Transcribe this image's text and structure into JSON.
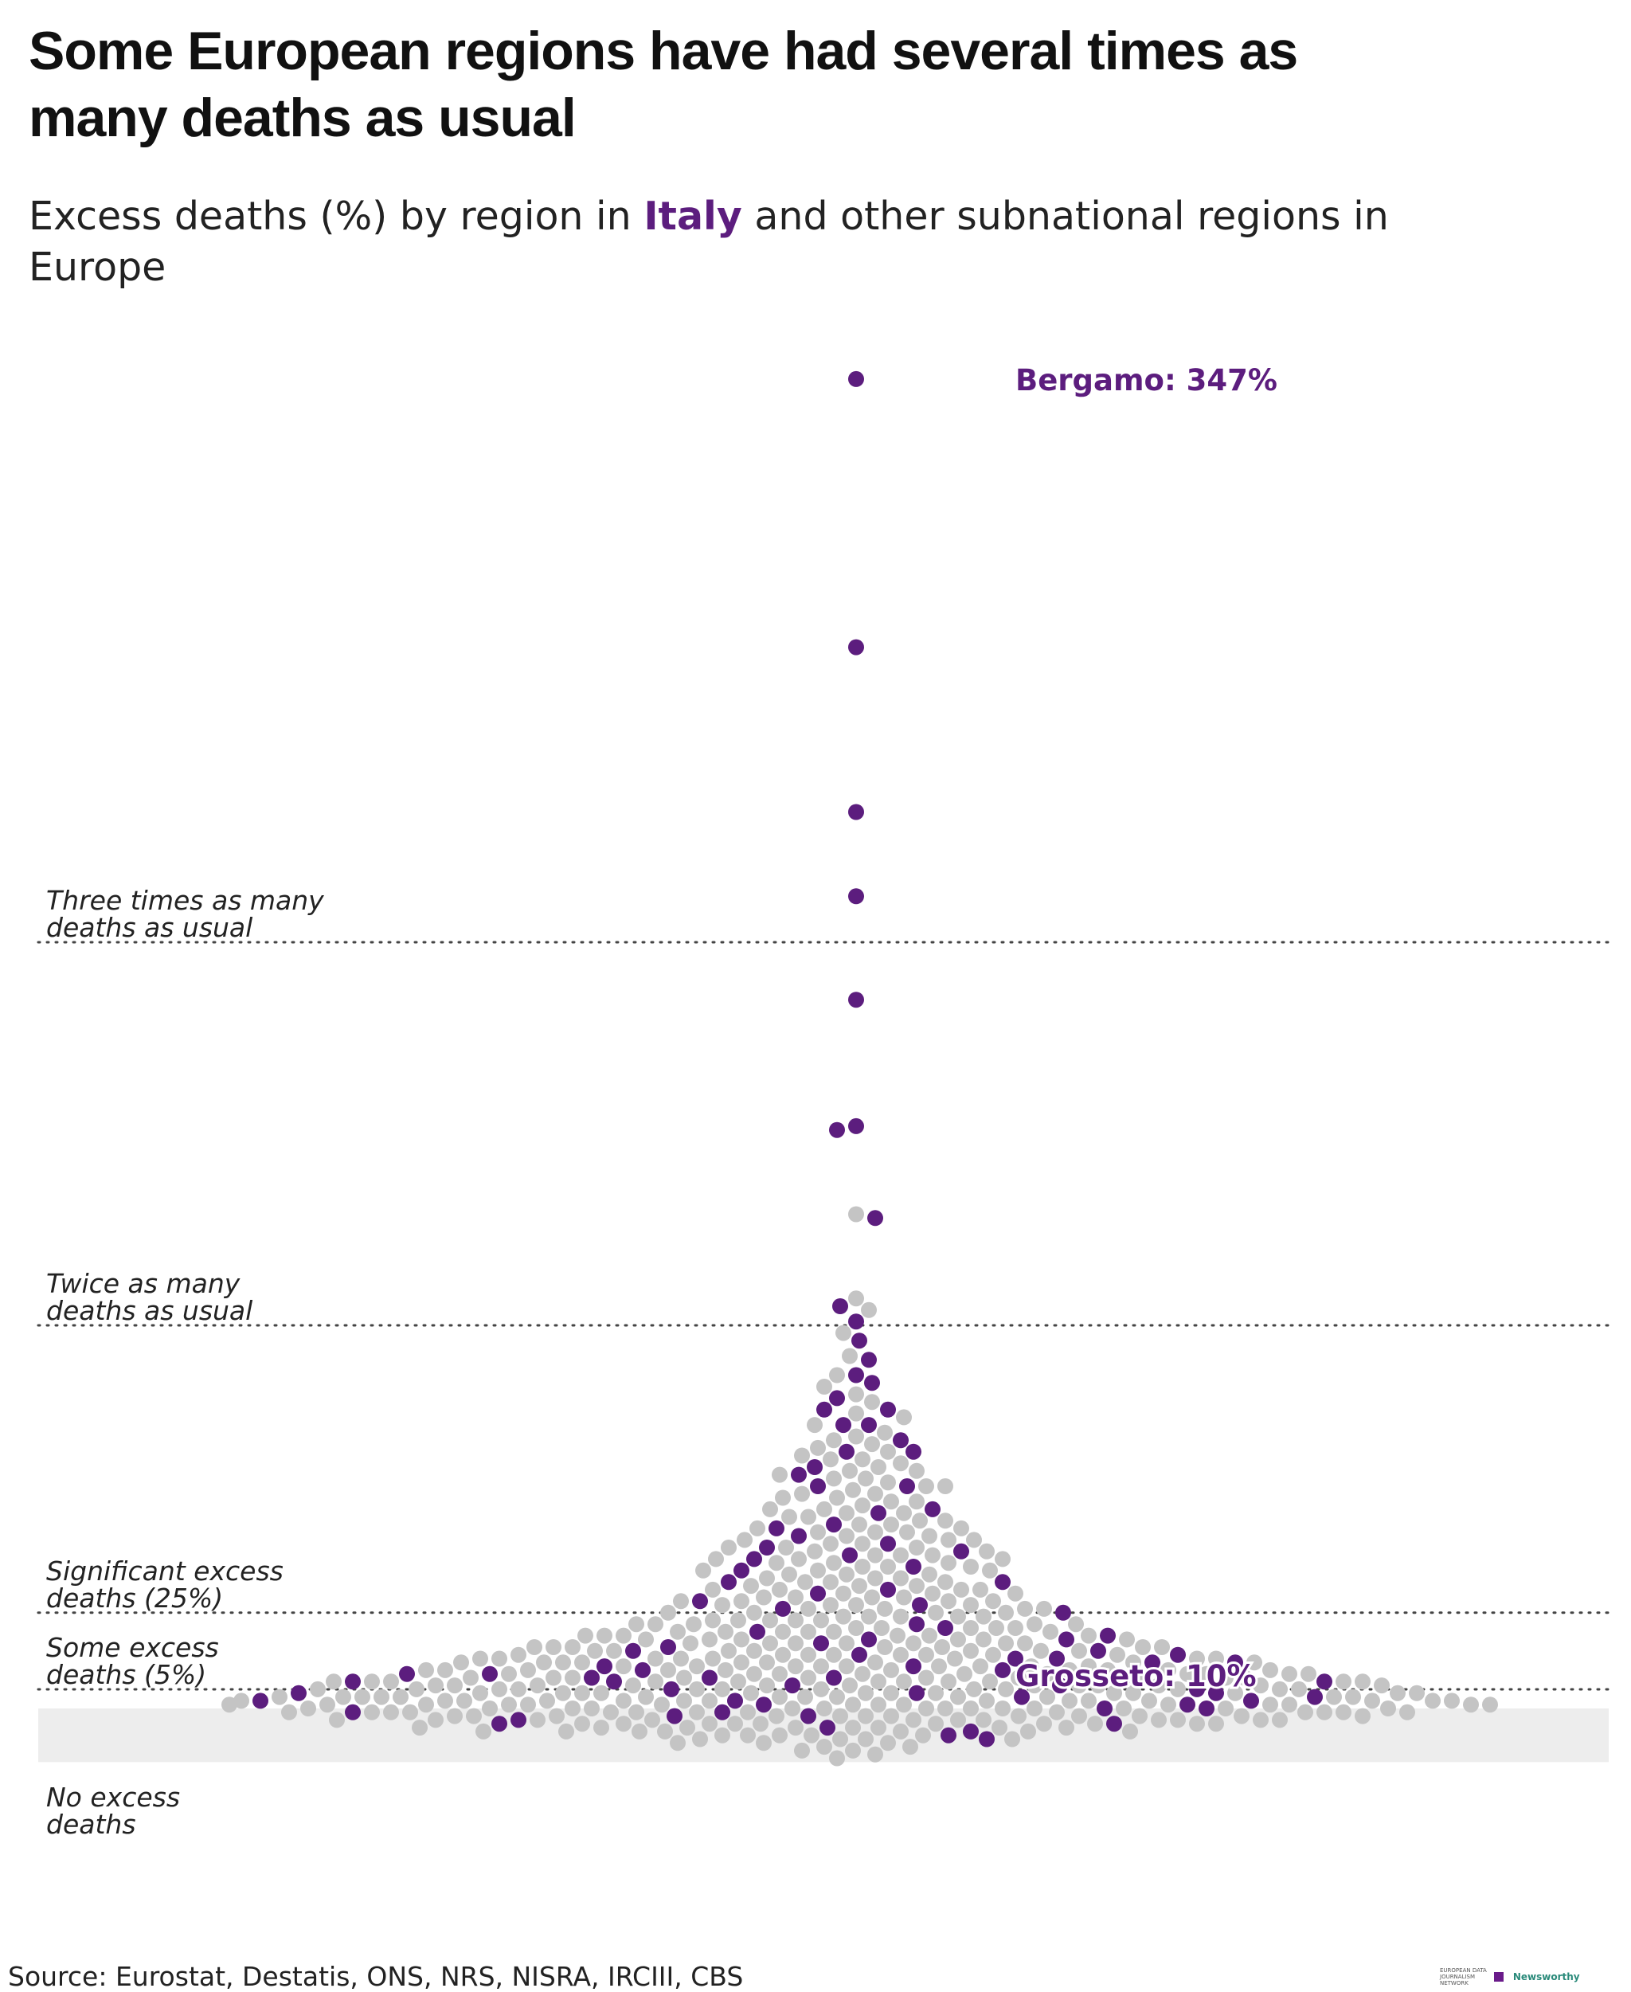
{
  "header": {
    "title": "Some European regions have had several times as many deaths as usual",
    "subtitle_pre": "Excess deaths (%) by region in ",
    "subtitle_highlight": "Italy",
    "subtitle_post": " and other subnational regions in Europe"
  },
  "footer": {
    "source": "Source: Eurostat, Destatis, ONS, NRS, NISRA, IRCIII, CBS",
    "logo_edjnet": "EUROPEAN DATA JOURNALISM NETWORK",
    "logo_newsworthy": "Newsworthy"
  },
  "colors": {
    "highlight": "#5c1d7e",
    "other": "#c4c4c4",
    "no_excess_band": "#ededed",
    "reference_line": "#444444"
  },
  "chart_data": {
    "type": "scatter",
    "subtype": "beeswarm",
    "title": "Some European regions have had several times as many deaths as usual",
    "ylabel": "",
    "xlabel": "",
    "ylim": [
      -14,
      350
    ],
    "grid": false,
    "legend": "none",
    "reference_lines": [
      {
        "value": 200,
        "label_line1": "Three times as many",
        "label_line2": "deaths as usual"
      },
      {
        "value": 100,
        "label_line1": "Twice as many",
        "label_line2": "deaths as usual"
      },
      {
        "value": 25,
        "label_line1": "Significant excess",
        "label_line2": "deaths (25%)"
      },
      {
        "value": 5,
        "label_line1": "Some excess",
        "label_line2": "deaths (5%)"
      }
    ],
    "no_excess_band": {
      "from": -14,
      "to": 0,
      "label_line1": "No excess",
      "label_line2": "deaths"
    },
    "annotations": [
      {
        "text": "Bergamo: 347%",
        "value": 347
      },
      {
        "text": "Grosseto: 10%",
        "value": 10
      }
    ],
    "series": [
      {
        "name": "Italy",
        "color": "#5c1d7e",
        "values": [
          347,
          277,
          234,
          212,
          185,
          152,
          151,
          128,
          105,
          101,
          96,
          91,
          87,
          85,
          81,
          78,
          78,
          74,
          74,
          70,
          67,
          67,
          63,
          61,
          58,
          58,
          52,
          51,
          48,
          47,
          45,
          43,
          42,
          41,
          40,
          39,
          37,
          36,
          33,
          33,
          31,
          30,
          28,
          27,
          26,
          25,
          22,
          21,
          20,
          19,
          18,
          18,
          17,
          16,
          15,
          15,
          14,
          14,
          13,
          13,
          12,
          12,
          11,
          11,
          10,
          10,
          9,
          9,
          8,
          8,
          8,
          7,
          7,
          7,
          6,
          6,
          5,
          5,
          4,
          4,
          4,
          3,
          3,
          2,
          2,
          2,
          1,
          1,
          0,
          0,
          -1,
          -1,
          -2,
          -2,
          -3,
          -4,
          -4,
          -5,
          -6,
          -7,
          -8
        ]
      },
      {
        "name": "Other European regions",
        "color": "#c4c4c4",
        "values": [
          129,
          107,
          104,
          98,
          92,
          87,
          84,
          82,
          80,
          77,
          76,
          74,
          72,
          71,
          70,
          69,
          68,
          67,
          66,
          65,
          65,
          64,
          63,
          62,
          62,
          61,
          60,
          60,
          59,
          58,
          58,
          57,
          56,
          56,
          55,
          55,
          54,
          54,
          53,
          52,
          52,
          51,
          51,
          50,
          50,
          49,
          49,
          48,
          48,
          47,
          47,
          46,
          46,
          46,
          45,
          45,
          44,
          44,
          44,
          43,
          43,
          42,
          42,
          42,
          41,
          41,
          40,
          40,
          40,
          39,
          39,
          39,
          38,
          38,
          38,
          37,
          37,
          37,
          36,
          36,
          36,
          35,
          35,
          35,
          34,
          34,
          34,
          33,
          33,
          33,
          32,
          32,
          32,
          31,
          31,
          31,
          31,
          30,
          30,
          30,
          29,
          29,
          29,
          29,
          28,
          28,
          28,
          28,
          27,
          27,
          27,
          27,
          26,
          26,
          26,
          26,
          25,
          25,
          25,
          25,
          24,
          24,
          24,
          24,
          24,
          23,
          23,
          23,
          23,
          23,
          22,
          22,
          22,
          22,
          22,
          21,
          21,
          21,
          21,
          21,
          20,
          20,
          20,
          20,
          20,
          20,
          19,
          19,
          19,
          19,
          19,
          19,
          18,
          18,
          18,
          18,
          18,
          18,
          17,
          17,
          17,
          17,
          17,
          17,
          17,
          16,
          16,
          16,
          16,
          16,
          16,
          16,
          15,
          15,
          15,
          15,
          15,
          15,
          15,
          14,
          14,
          14,
          14,
          14,
          14,
          14,
          14,
          13,
          13,
          13,
          13,
          13,
          13,
          13,
          13,
          12,
          12,
          12,
          12,
          12,
          12,
          12,
          12,
          12,
          11,
          11,
          11,
          11,
          11,
          11,
          11,
          11,
          11,
          10,
          10,
          10,
          10,
          10,
          10,
          10,
          10,
          10,
          10,
          9,
          9,
          9,
          9,
          9,
          9,
          9,
          9,
          9,
          9,
          8,
          8,
          8,
          8,
          8,
          8,
          8,
          8,
          8,
          8,
          8,
          7,
          7,
          7,
          7,
          7,
          7,
          7,
          7,
          7,
          7,
          7,
          6,
          6,
          6,
          6,
          6,
          6,
          6,
          6,
          6,
          6,
          6,
          6,
          5,
          5,
          5,
          5,
          5,
          5,
          5,
          5,
          5,
          5,
          5,
          5,
          4,
          4,
          4,
          4,
          4,
          4,
          4,
          4,
          4,
          4,
          4,
          4,
          4,
          3,
          3,
          3,
          3,
          3,
          3,
          3,
          3,
          3,
          3,
          3,
          3,
          3,
          2,
          2,
          2,
          2,
          2,
          2,
          2,
          2,
          2,
          2,
          2,
          2,
          2,
          2,
          1,
          1,
          1,
          1,
          1,
          1,
          1,
          1,
          1,
          1,
          1,
          1,
          1,
          1,
          0,
          0,
          0,
          0,
          0,
          0,
          0,
          0,
          0,
          0,
          0,
          0,
          0,
          0,
          -1,
          -1,
          -1,
          -1,
          -1,
          -1,
          -1,
          -1,
          -1,
          -1,
          -1,
          -1,
          -1,
          -2,
          -2,
          -2,
          -2,
          -2,
          -2,
          -2,
          -2,
          -2,
          -2,
          -2,
          -2,
          -3,
          -3,
          -3,
          -3,
          -3,
          -3,
          -3,
          -3,
          -3,
          -3,
          -3,
          -4,
          -4,
          -4,
          -4,
          -4,
          -4,
          -4,
          -4,
          -4,
          -4,
          -5,
          -5,
          -5,
          -5,
          -5,
          -5,
          -5,
          -5,
          -6,
          -6,
          -6,
          -6,
          -6,
          -6,
          -6,
          -7,
          -7,
          -7,
          -7,
          -7,
          -8,
          -8,
          -8,
          -8,
          -9,
          -9,
          -9,
          -10,
          -10,
          -11,
          -11,
          -12,
          -13
        ]
      }
    ]
  }
}
